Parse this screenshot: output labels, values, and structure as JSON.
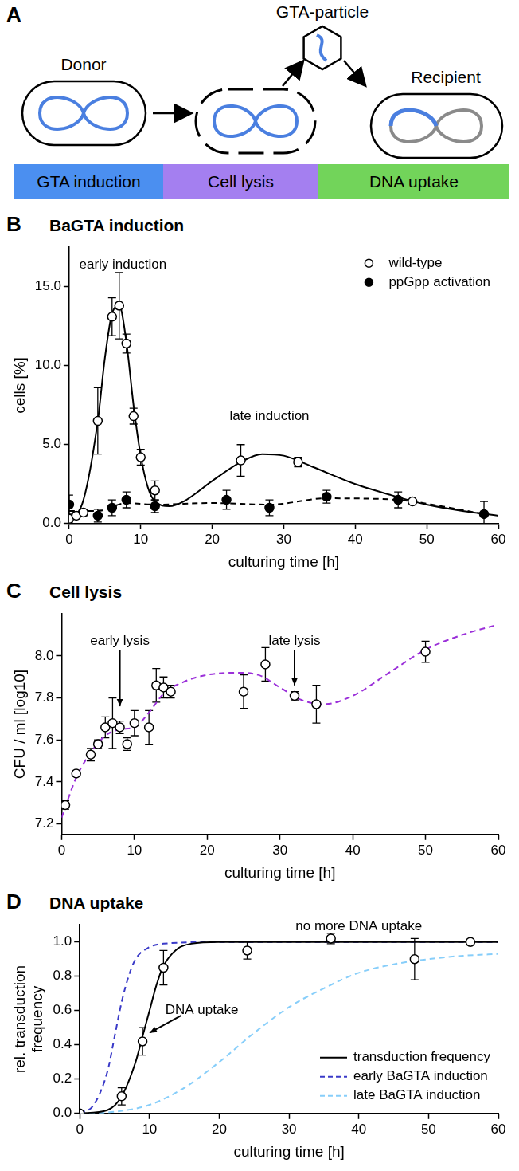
{
  "panel_a": {
    "panel": "A",
    "labels": {
      "donor": "Donor",
      "particle": "GTA-particle",
      "recipient": "Recipient"
    },
    "stages": [
      {
        "text": "GTA induction",
        "color": "#4b8ff0"
      },
      {
        "text": "Cell lysis",
        "color": "#a47ff0"
      },
      {
        "text": "DNA uptake",
        "color": "#72d45a"
      }
    ]
  },
  "chart_data": [
    {
      "panel": "B",
      "type": "scatter",
      "title": "BaGTA induction",
      "x_label": "culturing time [h]",
      "y_label": "cells [%]",
      "xlim": [
        0,
        60
      ],
      "xticks": [
        0,
        10,
        20,
        30,
        40,
        50,
        60
      ],
      "ylim": [
        0,
        17.5
      ],
      "yticks": [
        {
          "value": 0,
          "label": "0.0"
        },
        {
          "value": 5,
          "label": "5.0"
        },
        {
          "value": 10,
          "label": "10.0"
        },
        {
          "value": 15,
          "label": "15.0"
        }
      ],
      "grid": false,
      "legend": "upper right",
      "annotations": [
        {
          "text": "early induction",
          "x": 7.5,
          "y": 16.4
        },
        {
          "text": "late induction",
          "x": 28,
          "y": 6.8
        }
      ],
      "series": [
        {
          "name": "wild-type",
          "type": "scatter",
          "marker": "open circle",
          "color": "#000000",
          "x": [
            0,
            1,
            2,
            4,
            6,
            7,
            8,
            9,
            10,
            12,
            24,
            32,
            48
          ],
          "values": [
            0.3,
            0.5,
            0.7,
            6.5,
            13.1,
            13.8,
            11.4,
            6.8,
            4.2,
            2.1,
            4.0,
            3.9,
            1.4
          ],
          "errors": [
            0.2,
            0.2,
            0.2,
            2.1,
            1.2,
            2.1,
            0.6,
            0.5,
            0.5,
            0.6,
            1.0,
            0.3,
            0.1
          ]
        },
        {
          "name": "ppGpp activation",
          "type": "scatter",
          "marker": "filled circle",
          "color": "#000000",
          "x": [
            0,
            4,
            6,
            8,
            12,
            22,
            28,
            36,
            46,
            58
          ],
          "values": [
            1.2,
            0.5,
            1.0,
            1.5,
            1.1,
            1.5,
            1.0,
            1.7,
            1.5,
            0.6
          ],
          "errors": [
            0.6,
            0.4,
            0.5,
            0.5,
            0.4,
            0.6,
            0.5,
            0.4,
            0.5,
            0.8
          ]
        },
        {
          "type": "line",
          "line_style": "solid",
          "color": "#000000",
          "x": [
            0,
            2,
            4,
            5,
            6,
            7,
            8,
            9,
            10,
            11,
            12,
            14,
            16,
            20,
            24,
            27,
            30,
            34,
            40,
            45,
            50,
            55,
            60
          ],
          "values": [
            0.1,
            1.5,
            6.5,
            10.5,
            13.3,
            13.8,
            11.5,
            7.5,
            4.3,
            2.3,
            1.4,
            1.1,
            1.4,
            2.7,
            3.9,
            4.4,
            4.3,
            3.6,
            2.5,
            1.8,
            1.2,
            0.8,
            0.5
          ]
        },
        {
          "type": "line",
          "line_style": "dashed",
          "color": "#000000",
          "x": [
            0,
            4,
            8,
            12,
            20,
            28,
            36,
            46,
            52,
            58
          ],
          "values": [
            0.8,
            0.8,
            1.3,
            1.2,
            1.3,
            1.2,
            1.6,
            1.5,
            1.1,
            0.6
          ]
        }
      ]
    },
    {
      "panel": "C",
      "type": "scatter",
      "title": "Cell lysis",
      "x_label": "culturing time [h]",
      "y_label": "CFU / ml [log10]",
      "xlim": [
        0,
        60
      ],
      "xticks": [
        0,
        10,
        20,
        30,
        40,
        50,
        60
      ],
      "ylim": [
        7.15,
        8.2
      ],
      "yticks": [
        7.2,
        7.4,
        7.6,
        7.8,
        {
          "value": 8,
          "label": "8.0"
        }
      ],
      "grid": false,
      "annotations": [
        {
          "text": "early lysis",
          "x": 8,
          "y": 8.07,
          "arrow": [
            [
              8,
              8.03
            ],
            [
              8,
              7.76
            ]
          ]
        },
        {
          "text": "late lysis",
          "x": 32,
          "y": 8.07,
          "arrow": [
            [
              32,
              8.03
            ],
            [
              32,
              7.86
            ]
          ]
        }
      ],
      "series": [
        {
          "type": "scatter",
          "marker": "open circle",
          "color": "#000000",
          "x": [
            0.5,
            2,
            4,
            5,
            6,
            7,
            8,
            9,
            10,
            12,
            13,
            14,
            15,
            25,
            28,
            32,
            35,
            50
          ],
          "values": [
            7.29,
            7.44,
            7.53,
            7.58,
            7.66,
            7.68,
            7.66,
            7.58,
            7.68,
            7.66,
            7.86,
            7.85,
            7.83,
            7.83,
            7.96,
            7.81,
            7.77,
            8.02
          ],
          "errors": [
            0.02,
            0.01,
            0.03,
            0.02,
            0.05,
            0.12,
            0.03,
            0.03,
            0.06,
            0.08,
            0.08,
            0.05,
            0.03,
            0.08,
            0.08,
            0.02,
            0.09,
            0.05
          ]
        },
        {
          "type": "line",
          "line_style": "dashed",
          "color": "#9b30d9",
          "x": [
            0,
            2,
            4,
            6,
            8,
            10,
            12,
            14,
            17,
            20,
            24,
            27,
            30,
            33,
            36,
            40,
            45,
            50,
            55,
            60
          ],
          "values": [
            7.23,
            7.42,
            7.54,
            7.62,
            7.65,
            7.66,
            7.73,
            7.82,
            7.88,
            7.91,
            7.92,
            7.91,
            7.85,
            7.79,
            7.77,
            7.81,
            7.92,
            8.03,
            8.1,
            8.15
          ]
        }
      ]
    },
    {
      "panel": "D",
      "type": "scatter",
      "title": "DNA uptake",
      "x_label": "culturing time [h]",
      "y_label": [
        "rel. transduction",
        "frequency"
      ],
      "xlim": [
        0,
        60
      ],
      "xticks": [
        0,
        10,
        20,
        30,
        40,
        50,
        60
      ],
      "ylim": [
        0,
        1.1
      ],
      "yticks": [
        {
          "value": 0,
          "label": "0.0"
        },
        0.2,
        0.4,
        0.6,
        0.8,
        {
          "value": 1,
          "label": "1.0"
        }
      ],
      "grid": false,
      "legend": "lower right",
      "annotations": [
        {
          "text": "no more DNA uptake",
          "x": 40,
          "y": 1.09
        },
        {
          "text": "DNA uptake",
          "x": 17.5,
          "y": 0.6,
          "arrow": [
            [
              14.5,
              0.57
            ],
            [
              10,
              0.47
            ]
          ]
        }
      ],
      "series": [
        {
          "name": "transduction frequency",
          "type": "line",
          "line_style": "solid",
          "color": "#000000",
          "x": [
            0,
            4,
            6,
            8,
            9,
            10,
            11,
            12,
            14,
            16,
            20,
            60
          ],
          "values": [
            0,
            0.02,
            0.1,
            0.3,
            0.45,
            0.6,
            0.75,
            0.86,
            0.96,
            0.99,
            1.0,
            1.0
          ]
        },
        {
          "name": "early BaGTA induction",
          "type": "line",
          "line_style": "dashed",
          "color": "#3a3ac8",
          "x": [
            0,
            2,
            4,
            5,
            6,
            7,
            8,
            10,
            12,
            20,
            60
          ],
          "values": [
            0,
            0.05,
            0.25,
            0.45,
            0.65,
            0.8,
            0.9,
            0.97,
            0.99,
            1.0,
            1.0
          ]
        },
        {
          "name": "late BaGTA induction",
          "type": "line",
          "line_style": "dashed",
          "color": "#87cefa",
          "x": [
            0,
            5,
            10,
            15,
            20,
            25,
            30,
            35,
            40,
            45,
            50,
            55,
            60
          ],
          "values": [
            0,
            0.01,
            0.05,
            0.15,
            0.3,
            0.47,
            0.62,
            0.73,
            0.82,
            0.87,
            0.9,
            0.92,
            0.93
          ]
        },
        {
          "type": "scatter",
          "marker": "open circle",
          "color": "#000000",
          "x": [
            0,
            6,
            9,
            12,
            24,
            36,
            48,
            56
          ],
          "values": [
            0,
            0.1,
            0.42,
            0.85,
            0.95,
            1.02,
            0.9,
            1.0
          ],
          "errors": [
            0.005,
            0.05,
            0.08,
            0.1,
            0.05,
            0.03,
            0.12,
            0.01
          ]
        }
      ]
    }
  ]
}
